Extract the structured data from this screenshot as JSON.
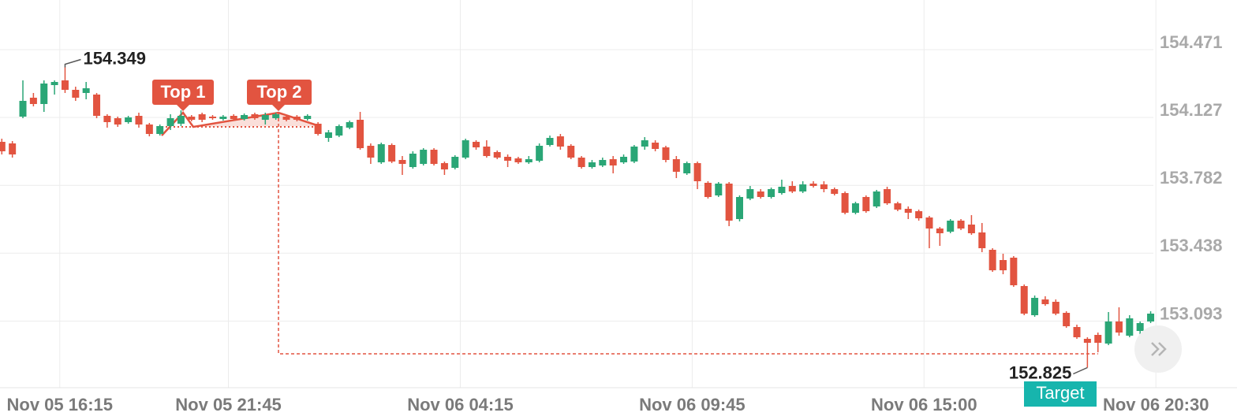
{
  "chart_data": {
    "type": "candlestick",
    "categories": [
      null,
      null,
      null,
      null,
      null,
      "Nov 05 16:15",
      null,
      null,
      null,
      null,
      null,
      null,
      null,
      null,
      null,
      null,
      null,
      null,
      null,
      null,
      null,
      "Nov 05 21:45",
      null,
      null,
      null,
      null,
      null,
      null,
      null,
      null,
      null,
      null,
      null,
      null,
      null,
      null,
      null,
      null,
      null,
      null,
      null,
      null,
      null,
      "Nov 06 04:15",
      null,
      null,
      null,
      null,
      null,
      null,
      null,
      null,
      null,
      null,
      null,
      null,
      null,
      null,
      null,
      null,
      null,
      null,
      null,
      null,
      null,
      "Nov 06 09:45",
      null,
      null,
      null,
      null,
      null,
      null,
      null,
      null,
      null,
      null,
      null,
      null,
      null,
      null,
      null,
      null,
      null,
      null,
      null,
      null,
      null,
      "Nov 06 15:00",
      null,
      null,
      null,
      null,
      null,
      null,
      null,
      null,
      null,
      null,
      null,
      null,
      null,
      null,
      null,
      null,
      null,
      null,
      null,
      null,
      null,
      "Nov 06 20:30"
    ],
    "open": [
      153.971,
      153.963,
      154.099,
      154.195,
      154.163,
      154.259,
      154.283,
      154.235,
      154.219,
      154.211,
      154.103,
      154.091,
      154.071,
      154.103,
      154.059,
      154.011,
      154.051,
      154.063,
      154.099,
      154.111,
      154.099,
      154.087,
      154.103,
      154.087,
      154.111,
      154.083,
      154.091,
      154.099,
      154.099,
      154.087,
      154.063,
      153.991,
      154.003,
      154.043,
      154.083,
      153.951,
      153.867,
      153.955,
      153.879,
      153.843,
      153.859,
      153.931,
      153.863,
      153.839,
      153.891,
      153.971,
      153.947,
      153.919,
      153.895,
      153.887,
      153.867,
      153.875,
      153.955,
      153.999,
      153.951,
      153.891,
      153.843,
      153.851,
      153.883,
      153.867,
      153.871,
      153.947,
      153.967,
      153.943,
      153.883,
      153.811,
      153.863,
      153.763,
      153.699,
      153.759,
      153.579,
      153.683,
      153.719,
      153.691,
      153.711,
      153.747,
      153.719,
      153.759,
      153.755,
      153.731,
      153.711,
      153.611,
      153.691,
      153.643,
      153.731,
      153.659,
      153.631,
      153.619,
      153.587,
      153.531,
      153.515,
      153.571,
      153.551,
      153.511,
      153.423,
      153.371,
      153.383,
      153.239,
      153.091,
      153.171,
      153.159,
      153.103,
      153.031,
      152.971,
      152.991,
      152.947,
      153.059,
      152.987,
      153.011,
      153.059
    ],
    "high": [
      153.987,
      153.975,
      154.283,
      154.219,
      154.283,
      154.283,
      154.349,
      154.251,
      154.275,
      154.219,
      154.111,
      154.099,
      154.103,
      154.119,
      154.067,
      154.059,
      154.111,
      154.131,
      154.107,
      154.119,
      154.107,
      154.107,
      154.111,
      154.115,
      154.119,
      154.119,
      154.119,
      154.107,
      154.107,
      154.111,
      154.071,
      154.031,
      154.059,
      154.079,
      154.123,
      153.963,
      153.967,
      153.963,
      153.899,
      153.923,
      153.939,
      153.939,
      153.871,
      153.903,
      153.987,
      153.979,
      153.979,
      153.927,
      153.907,
      153.895,
      153.899,
      153.963,
      154.003,
      154.011,
      153.959,
      153.899,
      153.879,
      153.891,
      153.899,
      153.907,
      153.955,
      153.995,
      153.979,
      153.951,
      153.899,
      153.871,
      153.871,
      153.771,
      153.767,
      153.767,
      153.699,
      153.747,
      153.731,
      153.739,
      153.779,
      153.771,
      153.771,
      153.771,
      153.771,
      153.739,
      153.719,
      153.667,
      153.699,
      153.727,
      153.743,
      153.667,
      153.643,
      153.627,
      153.595,
      153.539,
      153.579,
      153.579,
      153.599,
      153.559,
      153.431,
      153.403,
      153.391,
      153.247,
      153.191,
      153.187,
      153.171,
      153.111,
      153.043,
      152.979,
      153.003,
      153.107,
      153.131,
      153.091,
      153.059,
      153.111
    ],
    "low": [
      153.907,
      153.891,
      154.091,
      154.151,
      154.123,
      154.211,
      154.219,
      154.179,
      154.187,
      154.091,
      154.043,
      154.047,
      154.063,
      154.043,
      153.999,
      154.003,
      154.031,
      154.051,
      154.075,
      154.071,
      154.083,
      154.079,
      154.079,
      154.079,
      154.083,
      154.059,
      154.083,
      154.075,
      154.075,
      154.079,
      154.003,
      153.971,
      153.995,
      154.035,
      153.931,
      153.859,
      153.859,
      153.863,
      153.803,
      153.835,
      153.851,
      153.851,
      153.803,
      153.831,
      153.883,
      153.931,
      153.891,
      153.883,
      153.843,
      153.859,
      153.859,
      153.867,
      153.947,
      153.931,
      153.883,
      153.835,
      153.835,
      153.843,
      153.811,
      153.859,
      153.863,
      153.931,
      153.923,
      153.867,
      153.787,
      153.803,
      153.731,
      153.683,
      153.691,
      153.543,
      153.567,
      153.675,
      153.683,
      153.683,
      153.703,
      153.711,
      153.711,
      153.739,
      153.715,
      153.699,
      153.603,
      153.603,
      153.611,
      153.635,
      153.651,
      153.619,
      153.579,
      153.571,
      153.431,
      153.443,
      153.507,
      153.523,
      153.499,
      153.411,
      153.311,
      153.299,
      153.235,
      153.091,
      153.083,
      153.139,
      153.091,
      153.027,
      152.971,
      152.825,
      152.903,
      152.939,
      152.987,
      152.979,
      152.995,
      153.051
    ],
    "close": [
      153.923,
      153.907,
      154.179,
      154.163,
      154.267,
      154.275,
      154.235,
      154.195,
      154.243,
      154.103,
      154.071,
      154.059,
      154.095,
      154.059,
      154.011,
      154.051,
      154.091,
      154.103,
      154.083,
      154.083,
      154.091,
      154.099,
      154.087,
      154.107,
      154.091,
      154.107,
      154.111,
      154.083,
      154.083,
      154.103,
      154.011,
      154.019,
      154.051,
      154.071,
      153.939,
      153.891,
      153.959,
      153.871,
      153.859,
      153.911,
      153.931,
      153.859,
      153.831,
      153.895,
      153.979,
      153.943,
      153.899,
      153.891,
      153.875,
      153.867,
      153.883,
      153.951,
      153.991,
      153.947,
      153.891,
      153.843,
      153.867,
      153.879,
      153.851,
      153.895,
      153.947,
      153.979,
      153.935,
      153.879,
      153.819,
      153.863,
      153.771,
      153.691,
      153.759,
      153.571,
      153.691,
      153.731,
      153.691,
      153.731,
      153.743,
      153.719,
      153.755,
      153.747,
      153.731,
      153.707,
      153.611,
      153.659,
      153.619,
      153.719,
      153.659,
      153.627,
      153.611,
      153.583,
      153.531,
      153.507,
      153.571,
      153.531,
      153.507,
      153.431,
      153.319,
      153.319,
      153.243,
      153.099,
      153.179,
      153.147,
      153.099,
      153.035,
      152.979,
      152.951,
      152.951,
      153.059,
      153.003,
      153.075,
      153.051,
      153.099
    ],
    "up_color": "#2aa676",
    "down_color": "#e25440",
    "ylim": [
      152.731,
      154.691
    ],
    "yticks": [
      154.471,
      154.127,
      153.782,
      153.438,
      153.093
    ],
    "grid": true,
    "annotations": [
      "Top 1",
      "Top 2",
      "Target"
    ]
  }
}
